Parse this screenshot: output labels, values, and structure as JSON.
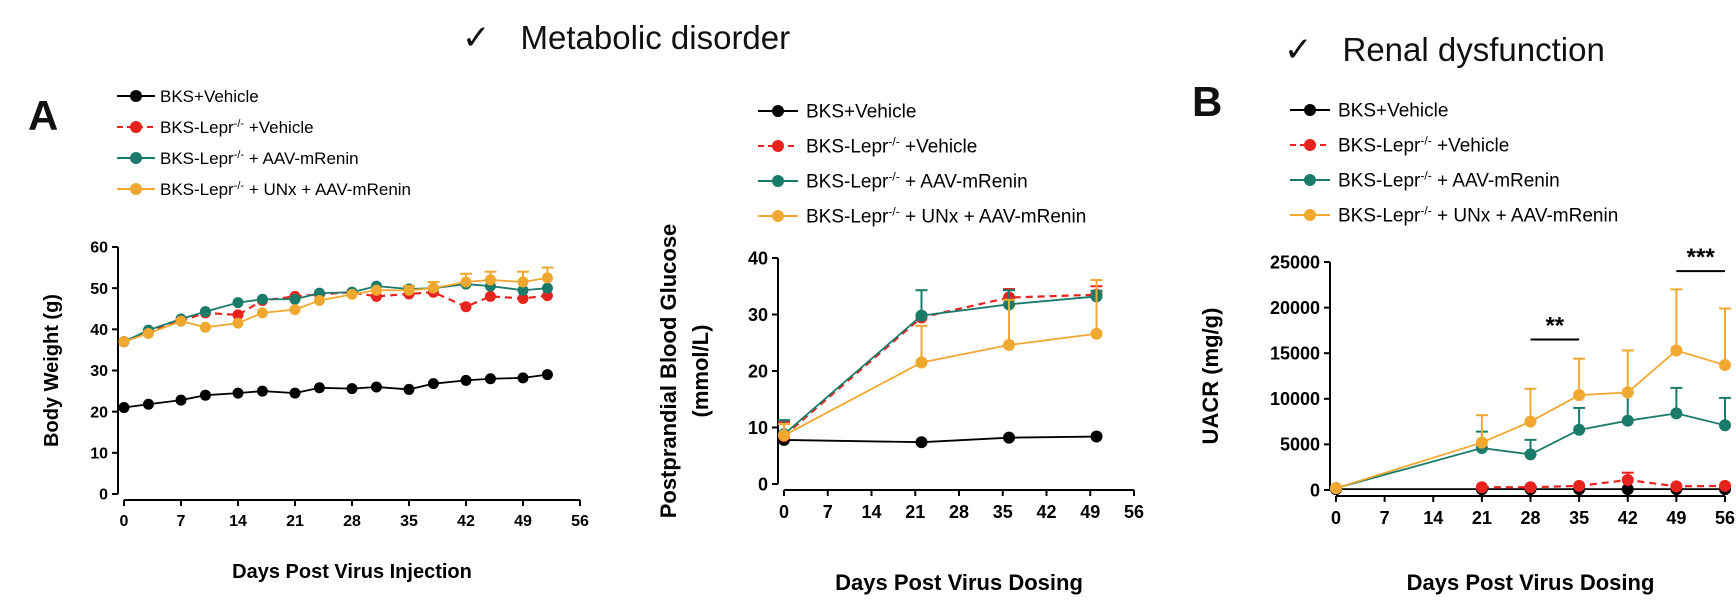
{
  "headers": {
    "metabolic": {
      "check": "✓",
      "title": "Metabolic disorder"
    },
    "renal": {
      "check": "✓",
      "title": "Renal dysfunction"
    }
  },
  "panels": {
    "a": "A",
    "b": "B"
  },
  "chart_data": [
    {
      "id": "body-weight",
      "type": "line",
      "xlabel": "Days Post Virus Injection",
      "ylabel": "Body Weight (g)",
      "xlim": [
        0,
        56
      ],
      "ylim": [
        0,
        60
      ],
      "xticks": [
        0,
        7,
        14,
        21,
        28,
        35,
        42,
        49,
        56
      ],
      "yticks": [
        0,
        10,
        20,
        30,
        40,
        50,
        60
      ],
      "legend_position": "top-left",
      "series": [
        {
          "name": "BKS+Vehicle",
          "color": "#000000",
          "dashed": false,
          "x": [
            0,
            3,
            7,
            10,
            14,
            17,
            21,
            24,
            28,
            31,
            35,
            38,
            42,
            45,
            49,
            52
          ],
          "y": [
            21,
            21.8,
            22.8,
            24,
            24.5,
            25,
            24.5,
            25.8,
            25.6,
            26,
            25.4,
            26.8,
            27.6,
            28,
            28.2,
            29
          ]
        },
        {
          "name": "BKS-Lepr-/- +Vehicle",
          "color": "#e8231e",
          "dashed": true,
          "x": [
            0,
            3,
            7,
            10,
            14,
            17,
            21,
            24,
            28,
            31,
            35,
            38,
            42,
            45,
            49,
            52
          ],
          "y": [
            37,
            39.5,
            42,
            44,
            43.5,
            47,
            48,
            48.5,
            49,
            48,
            48.6,
            49,
            45.5,
            48,
            47.5,
            48.2
          ]
        },
        {
          "name": "BKS-Lepr-/- + AAV-mRenin",
          "color": "#1a7b6a",
          "dashed": false,
          "x": [
            0,
            3,
            7,
            10,
            14,
            17,
            21,
            24,
            28,
            31,
            35,
            38,
            42,
            45,
            49,
            52
          ],
          "y": [
            37,
            39.8,
            42.5,
            44.3,
            46.5,
            47.3,
            47.3,
            48.8,
            49,
            50.5,
            49.8,
            50,
            51,
            50.5,
            49.5,
            50
          ]
        },
        {
          "name": "BKS-Lepr-/- + UNx + AAV-mRenin",
          "color": "#f0a830",
          "dashed": false,
          "x": [
            0,
            3,
            7,
            10,
            14,
            17,
            21,
            24,
            28,
            31,
            35,
            38,
            42,
            45,
            49,
            52
          ],
          "y": [
            37,
            39,
            42,
            40.5,
            41.5,
            44,
            44.8,
            47,
            48.5,
            49.5,
            49.5,
            50,
            51.5,
            52,
            51.5,
            52.5
          ],
          "err": [
            0,
            0,
            0,
            0,
            0,
            0,
            0,
            0,
            0,
            0,
            1,
            1.5,
            2,
            2,
            2.5,
            2.5
          ]
        }
      ]
    },
    {
      "id": "blood-glucose",
      "type": "line",
      "xlabel": "Days Post Virus Dosing",
      "ylabel": "Postprandial Blood Glucose",
      "ylabel2": "(mmol/L)",
      "xlim": [
        0,
        56
      ],
      "ylim": [
        0,
        40
      ],
      "xticks": [
        0,
        7,
        14,
        21,
        28,
        35,
        42,
        49,
        56
      ],
      "yticks": [
        0,
        10,
        20,
        30,
        40
      ],
      "legend_position": "top-left",
      "series": [
        {
          "name": "BKS+Vehicle",
          "color": "#000000",
          "dashed": false,
          "x": [
            0,
            22,
            36,
            50
          ],
          "y": [
            7.8,
            7.4,
            8.2,
            8.4
          ]
        },
        {
          "name": "BKS-Lepr-/- +Vehicle",
          "color": "#e8231e",
          "dashed": true,
          "x": [
            0,
            22,
            36,
            50
          ],
          "y": [
            8.5,
            29.5,
            33,
            33.5
          ],
          "err": [
            2.5,
            0,
            1.5,
            1.5
          ]
        },
        {
          "name": "BKS-Lepr-/- + AAV-mRenin",
          "color": "#1a7b6a",
          "dashed": false,
          "x": [
            0,
            22,
            36,
            50
          ],
          "y": [
            8.8,
            29.8,
            31.8,
            33.2
          ],
          "err": [
            2.5,
            4.5,
            2.5,
            1
          ]
        },
        {
          "name": "BKS-Lepr-/- + UNx + AAV-mRenin",
          "color": "#f0a830",
          "dashed": false,
          "x": [
            0,
            22,
            36,
            50
          ],
          "y": [
            8.6,
            21.5,
            24.6,
            26.6
          ],
          "err": [
            2,
            6.5,
            8,
            9.5
          ]
        }
      ]
    },
    {
      "id": "uacr",
      "type": "line",
      "xlabel": "Days Post Virus Dosing",
      "ylabel": "UACR (mg/g)",
      "xlim": [
        0,
        56
      ],
      "ylim": [
        0,
        25000
      ],
      "xticks": [
        0,
        7,
        14,
        21,
        28,
        35,
        42,
        49,
        56
      ],
      "yticks": [
        0,
        5000,
        10000,
        15000,
        20000,
        25000
      ],
      "legend_position": "top-left",
      "annotations": [
        {
          "text": "**",
          "x1": 28,
          "x2": 35,
          "y": 16500
        },
        {
          "text": "***",
          "x1": 49,
          "x2": 56,
          "y": 24000
        }
      ],
      "series": [
        {
          "name": "BKS+Vehicle",
          "color": "#000000",
          "dashed": false,
          "x": [
            0,
            21,
            28,
            35,
            42,
            49,
            56
          ],
          "y": [
            100,
            100,
            100,
            100,
            100,
            100,
            100
          ]
        },
        {
          "name": "BKS-Lepr-/- +Vehicle",
          "color": "#e8231e",
          "dashed": true,
          "x": [
            21,
            28,
            35,
            42,
            49,
            56
          ],
          "y": [
            300,
            300,
            450,
            1100,
            400,
            450
          ],
          "err": [
            0,
            0,
            0,
            800,
            0,
            0
          ]
        },
        {
          "name": "BKS-Lepr-/- + AAV-mRenin",
          "color": "#1a7b6a",
          "dashed": false,
          "x": [
            0,
            21,
            28,
            35,
            42,
            49,
            56
          ],
          "y": [
            200,
            4600,
            3900,
            6600,
            7600,
            8400,
            7100
          ],
          "err": [
            0,
            1800,
            1600,
            2400,
            3000,
            2800,
            3000
          ]
        },
        {
          "name": "BKS-Lepr-/- + UNx + AAV-mRenin",
          "color": "#f0a830",
          "dashed": false,
          "x": [
            0,
            21,
            28,
            35,
            42,
            49,
            56
          ],
          "y": [
            200,
            5200,
            7500,
            10400,
            10700,
            15300,
            13700
          ],
          "err": [
            0,
            3000,
            3600,
            4000,
            4600,
            6700,
            6200
          ]
        }
      ]
    }
  ]
}
